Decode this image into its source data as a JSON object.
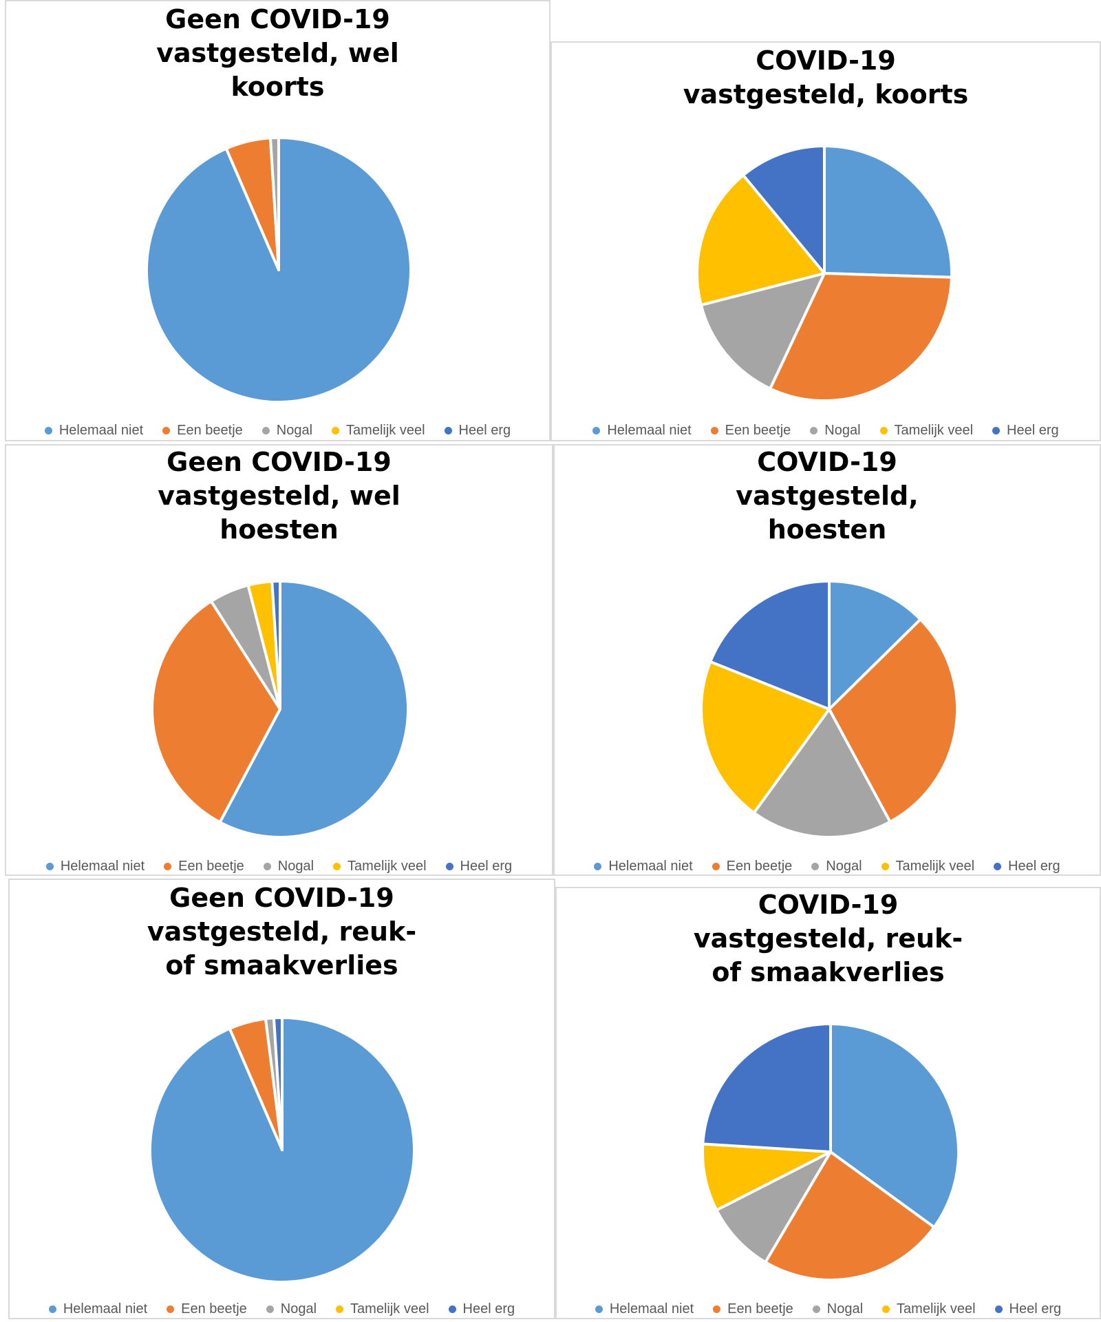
{
  "palette": {
    "Helemaal niet": "#5B9BD5",
    "Een beetje": "#ED7D31",
    "Nogal": "#A5A5A5",
    "Tamelijk veel": "#FFC000",
    "Heel erg": "#4472C4"
  },
  "legend_labels": [
    "Helemaal niet",
    "Een beetje",
    "Nogal",
    "Tamelijk veel",
    "Heel erg"
  ],
  "chart_data": [
    {
      "type": "pie",
      "title": "Geen COVID-19\nvastgesteld, wel\nkoorts",
      "categories": [
        "Helemaal niet",
        "Een beetje",
        "Nogal",
        "Tamelijk veel",
        "Heel erg"
      ],
      "values": [
        93.5,
        5.5,
        1.0,
        0,
        0
      ],
      "legend": "bottom"
    },
    {
      "type": "pie",
      "title": "COVID-19\nvastgesteld, koorts",
      "categories": [
        "Helemaal niet",
        "Een beetje",
        "Nogal",
        "Tamelijk veel",
        "Heel erg"
      ],
      "values": [
        25.5,
        31.5,
        14,
        18,
        11
      ],
      "legend": "bottom"
    },
    {
      "type": "pie",
      "title": "Geen COVID-19\nvastgesteld, wel\nhoesten",
      "categories": [
        "Helemaal niet",
        "Een beetje",
        "Nogal",
        "Tamelijk veel",
        "Heel erg"
      ],
      "values": [
        57.5,
        33,
        5,
        3,
        1
      ],
      "legend": "bottom"
    },
    {
      "type": "pie",
      "title": "COVID-19\nvastgesteld,\nhoesten",
      "categories": [
        "Helemaal niet",
        "Een beetje",
        "Nogal",
        "Tamelijk veel",
        "Heel erg"
      ],
      "values": [
        12,
        28,
        17,
        20,
        18
      ],
      "legend": "bottom"
    },
    {
      "type": "pie",
      "title": "Geen COVID-19\nvastgesteld, reuk-\nof smaakverlies",
      "categories": [
        "Helemaal niet",
        "Een beetje",
        "Nogal",
        "Tamelijk veel",
        "Heel erg"
      ],
      "values": [
        93.5,
        4.5,
        1.0,
        0,
        1.0
      ],
      "legend": "bottom"
    },
    {
      "type": "pie",
      "title": "COVID-19\nvastgesteld, reuk-\nof smaakverlies",
      "categories": [
        "Helemaal niet",
        "Een beetje",
        "Nogal",
        "Tamelijk veel",
        "Heel erg"
      ],
      "values": [
        35,
        23.5,
        9,
        8.5,
        24
      ],
      "legend": "bottom"
    }
  ]
}
